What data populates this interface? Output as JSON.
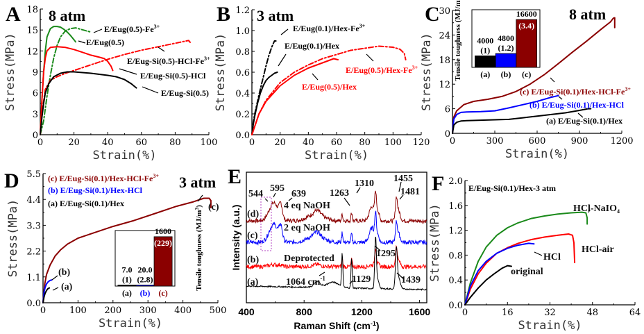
{
  "colors": {
    "black": "#000000",
    "red": "#ff0000",
    "green": "#1a8a1a",
    "blue": "#0000ff",
    "darkred": "#8b0000",
    "purple": "#b040c0"
  },
  "chart_data": [
    {
      "panel": "A",
      "type": "line",
      "title": "8 atm",
      "xlabel": "Strain(%)",
      "ylabel": "Stress(MPa)",
      "xlim": [
        0,
        100
      ],
      "ylim": [
        0,
        18
      ],
      "xticks": [
        "0",
        "20",
        "40",
        "60",
        "80",
        "100"
      ],
      "yticks": [
        "0",
        "3",
        "6",
        "9",
        "12",
        "15",
        "18"
      ],
      "series": [
        {
          "name": "E/Eug(0.5)-Fe3+",
          "label": "E/Eug(0.5)-Fe",
          "sup": "3+",
          "color": "green",
          "dash": "dashdot",
          "x": [
            0,
            2,
            4,
            6,
            8,
            10,
            12,
            15,
            18,
            21,
            24,
            27,
            30
          ],
          "y": [
            0,
            2,
            5.5,
            8.5,
            11,
            12.8,
            14,
            14.9,
            15.2,
            15.3,
            15.1,
            14.9,
            14.7
          ]
        },
        {
          "name": "E/Eug(0.5)",
          "label": "E/Eug(0.5)",
          "color": "green",
          "dash": "solid",
          "x": [
            0,
            1,
            2,
            3,
            4,
            6,
            8,
            10,
            12,
            14,
            16,
            18,
            20,
            21
          ],
          "y": [
            0,
            5,
            9,
            12,
            14,
            15.2,
            15.5,
            15.5,
            15.4,
            15.1,
            14.7,
            14.2,
            13.6,
            13.3
          ]
        },
        {
          "name": "E/Eug-Si(0.5)-HCl-Fe3+",
          "label": "E/Eug-Si(0.5)-HCl-Fe",
          "sup": "3+",
          "color": "red",
          "dash": "dashdot",
          "x": [
            0,
            1,
            3,
            6,
            10,
            15,
            20,
            30,
            40,
            50,
            60,
            70,
            80,
            88,
            89
          ],
          "y": [
            0,
            3,
            6.5,
            7.8,
            8.3,
            8.8,
            9.2,
            10,
            10.8,
            11.5,
            12.1,
            12.6,
            13.1,
            13.5,
            13.2
          ]
        },
        {
          "name": "E/Eug-Si(0.5)-HCl",
          "label": "E/Eug-Si(0.5)-HCl",
          "color": "red",
          "dash": "solid",
          "x": [
            0,
            1,
            2,
            3,
            4,
            6,
            10,
            15,
            20,
            25,
            30,
            35,
            38,
            40,
            42,
            43
          ],
          "y": [
            0,
            5,
            9,
            11,
            12,
            12.5,
            12.6,
            12.5,
            12.2,
            11.8,
            11.4,
            11.1,
            10.9,
            10.5,
            9.8,
            9.2
          ]
        },
        {
          "name": "E/Eug-Si(0.5)",
          "label": "E/Eug-Si(0.5)",
          "color": "black",
          "dash": "solid",
          "x": [
            0,
            1,
            2,
            3,
            5,
            8,
            12,
            16,
            20,
            30,
            40,
            45,
            50,
            54,
            57
          ],
          "y": [
            0,
            2.5,
            4.5,
            6,
            7.3,
            8.3,
            8.8,
            9,
            9,
            8.8,
            8.5,
            8.3,
            7.9,
            7.3,
            6.7
          ]
        }
      ]
    },
    {
      "panel": "B",
      "type": "line",
      "title": "3 atm",
      "xlabel": "Strain(%)",
      "ylabel": "Stress(MPa)",
      "xlim": [
        0,
        120
      ],
      "ylim": [
        0,
        1.2
      ],
      "xticks": [
        "0",
        "20",
        "40",
        "60",
        "80",
        "100",
        "120"
      ],
      "yticks": [
        "0.0",
        "0.2",
        "0.4",
        "0.6",
        "0.8",
        "1.0",
        "1.2"
      ],
      "series": [
        {
          "name": "E/Eug(0.1)/Hex-Fe3+",
          "label": "E/Eug(0.1)/Hex-Fe",
          "sup": "3+",
          "color": "black",
          "dash": "dashdot",
          "x": [
            0,
            1,
            2,
            4,
            6,
            8,
            10,
            12,
            14,
            16,
            17
          ],
          "y": [
            0,
            0.12,
            0.2,
            0.32,
            0.44,
            0.55,
            0.66,
            0.76,
            0.84,
            0.9,
            0.9
          ]
        },
        {
          "name": "E/Eug(0.1)/Hex",
          "label": "E/Eug(0.1)/Hex",
          "color": "black",
          "dash": "solid",
          "x": [
            0,
            1,
            2,
            4,
            6,
            8,
            10,
            12,
            14,
            16,
            18
          ],
          "y": [
            0,
            0.1,
            0.18,
            0.3,
            0.4,
            0.47,
            0.52,
            0.55,
            0.57,
            0.59,
            0.6
          ]
        },
        {
          "name": "E/Eug(0.5)/Hex-Fe3+",
          "label": "E/Eug(0.5)/Hex-Fe",
          "sup": "3+",
          "color": "red",
          "dash": "dashdot",
          "x": [
            0,
            5,
            10,
            20,
            30,
            40,
            50,
            60,
            70,
            80,
            90,
            100,
            105,
            108,
            109
          ],
          "y": [
            0,
            0.2,
            0.33,
            0.5,
            0.6,
            0.67,
            0.73,
            0.77,
            0.81,
            0.83,
            0.85,
            0.84,
            0.82,
            0.78,
            0.72
          ]
        },
        {
          "name": "E/Eug(0.5)/Hex",
          "label": "E/Eug(0.5)/Hex",
          "color": "red",
          "dash": "solid",
          "x": [
            0,
            5,
            10,
            20,
            30,
            40,
            50,
            58,
            61
          ],
          "y": [
            0,
            0.2,
            0.32,
            0.47,
            0.57,
            0.64,
            0.69,
            0.73,
            0.72
          ]
        }
      ]
    },
    {
      "panel": "C",
      "type": "line",
      "title": "8 atm",
      "xlabel": "Strain(%)",
      "ylabel": "Stress(MPa)",
      "xlim": [
        0,
        1200
      ],
      "ylim": [
        0,
        30
      ],
      "xticks": [
        "0",
        "300",
        "600",
        "900",
        "1200"
      ],
      "yticks": [
        "0",
        "6",
        "12",
        "18",
        "24",
        "30"
      ],
      "series": [
        {
          "name": "(c) E/Eug-Si(0.1)/Hex-HCl-Fe3+",
          "label": "(c) E/Eug-Si(0.1)/Hex-HCl-Fe",
          "sup": "3+",
          "color": "darkred",
          "dash": "solid",
          "x": [
            0,
            10,
            30,
            80,
            150,
            250,
            350,
            450,
            550,
            650,
            750,
            850,
            950,
            1050,
            1120,
            1140,
            1150,
            1150
          ],
          "y": [
            0,
            4,
            5.5,
            7,
            7.8,
            8.3,
            9,
            10.2,
            12,
            14.3,
            17,
            19.8,
            22.5,
            25.3,
            27.2,
            28.1,
            28.2,
            25.8
          ]
        },
        {
          "name": "(b) E/Eug-Si(0.1)/Hex-HCl",
          "label": "(b) E/Eug-Si(0.1)/Hex-HCl",
          "color": "blue",
          "dash": "solid",
          "x": [
            0,
            10,
            30,
            60,
            100,
            200,
            300,
            400,
            500,
            600,
            700,
            750
          ],
          "y": [
            0,
            3.5,
            4.6,
            5.1,
            5.2,
            5.3,
            5.5,
            6.2,
            7,
            7.8,
            8.8,
            9.2
          ]
        },
        {
          "name": "(a) E/Eug-Si(0.1)/Hex",
          "label": "(a) E/Eug-Si(0.1)/Hex",
          "color": "black",
          "dash": "solid",
          "x": [
            0,
            10,
            30,
            60,
            100,
            200,
            300,
            400,
            500,
            600,
            700,
            800,
            900,
            960,
            980
          ],
          "y": [
            0,
            2,
            2.7,
            3,
            3.1,
            3.2,
            3.3,
            3.4,
            3.8,
            4.2,
            4.6,
            5,
            5.6,
            6,
            6
          ]
        }
      ],
      "inset": {
        "type": "bar",
        "ylabel": "Tensile toughness (MJ/m3)",
        "categories": [
          "(a)",
          "(b)",
          "(c)"
        ],
        "values": [
          4000,
          4800,
          16600
        ],
        "value_labels": [
          "4000",
          "4800",
          "16600"
        ],
        "ratio_labels": [
          "(1)",
          "(1.2)",
          "(3.4)"
        ],
        "colors": [
          "black",
          "blue",
          "darkred"
        ],
        "ylim": [
          0,
          20000
        ]
      }
    },
    {
      "panel": "D",
      "type": "line",
      "title": "3 atm",
      "xlabel": "Strain(%)",
      "ylabel": "Stress(MPa)",
      "xlim": [
        0,
        500
      ],
      "ylim": [
        0,
        5.5
      ],
      "xticks": [
        "0",
        "100",
        "200",
        "300",
        "400",
        "500"
      ],
      "yticks": [
        "0.0",
        "1.1",
        "2.2",
        "3.3",
        "4.4",
        "5.5"
      ],
      "legend": [
        "(c) E/Eug-Si(0.1)/Hex-HCl-Fe3+",
        "(b) E/Eug-Si(0.1)/Hex-HCl",
        "(a) E/Eug-Si(0.1)/Hex"
      ],
      "series": [
        {
          "name": "(c) E/Eug-Si(0.1)/Hex-HCl-Fe3+",
          "label": "(c) E/Eug-Si(0.1)/Hex-HCl-Fe",
          "sup": "3+",
          "color": "darkred",
          "dash": "solid",
          "x": [
            0,
            5,
            10,
            20,
            35,
            50,
            70,
            100,
            140,
            200,
            260,
            320,
            380,
            430,
            460,
            475,
            480,
            480
          ],
          "y": [
            0,
            0.8,
            1.2,
            1.6,
            2.0,
            2.25,
            2.5,
            2.75,
            2.95,
            3.25,
            3.5,
            3.8,
            4.1,
            4.3,
            4.45,
            4.45,
            4.35,
            4.05
          ]
        },
        {
          "name": "(b) E/Eug-Si(0.1)/Hex-HCl",
          "label": "(b)",
          "color": "blue",
          "dash": "solid",
          "x": [
            0,
            3,
            6,
            10,
            15,
            20,
            25
          ],
          "y": [
            0,
            0.45,
            0.65,
            0.8,
            0.9,
            0.95,
            0.97
          ]
        },
        {
          "name": "(a) E/Eug-Si(0.1)/Hex",
          "label": "(a)",
          "color": "black",
          "dash": "solid",
          "x": [
            0,
            3,
            6,
            10,
            14,
            18
          ],
          "y": [
            0,
            0.25,
            0.4,
            0.52,
            0.6,
            0.63
          ]
        }
      ],
      "inset": {
        "type": "bar",
        "ylabel": "Tensile toughness (MJ/m3)",
        "categories": [
          "(a)",
          "(b)",
          "(c)"
        ],
        "values": [
          7.0,
          20.0,
          1600
        ],
        "value_labels": [
          "7.0",
          "20.0",
          "1600"
        ],
        "ratio_labels": [
          "(1)",
          "(2.8)",
          "(229)"
        ],
        "colors": [
          "black",
          "blue",
          "darkred"
        ],
        "ylim": [
          0,
          1800
        ]
      }
    },
    {
      "panel": "E",
      "type": "line",
      "xlabel": "Raman Shift (cm-1)",
      "ylabel": "Intensity (a.u.)",
      "xlim": [
        400,
        1650
      ],
      "xticks": [
        "400",
        "800",
        "1200",
        "1600"
      ],
      "series": [
        {
          "name": "(d) 4 eq NaOH",
          "tag": "(d)",
          "label": "4 eq NaOH",
          "color": "darkred"
        },
        {
          "name": "(c) 2 eq NaOH",
          "tag": "(c)",
          "label": "2 eq NaOH",
          "color": "blue"
        },
        {
          "name": "(b) Deprotected",
          "tag": "(b)",
          "label": "Deprotected",
          "color": "red"
        },
        {
          "name": "(a)",
          "tag": "(a)",
          "label": "",
          "color": "black"
        }
      ],
      "annotations": [
        "544",
        "595",
        "639",
        "1263",
        "1310",
        "1455",
        "1481",
        "1295",
        "1064 cm-1",
        "1129",
        "1439"
      ]
    },
    {
      "panel": "F",
      "type": "line",
      "title": "E/Eug-Si(0.1)/Hex-3 atm",
      "xlabel": "Strain(%)",
      "ylabel": "Stress(MPa)",
      "xlim": [
        0,
        64
      ],
      "ylim": [
        0,
        2.0
      ],
      "xticks": [
        "0",
        "16",
        "32",
        "48",
        "64"
      ],
      "yticks": [
        "0.0",
        "0.4",
        "0.8",
        "1.2",
        "1.6",
        "2.0"
      ],
      "series": [
        {
          "name": "HCl-NaIO4",
          "label": "HCl-NaIO",
          "sub": "4",
          "color": "green",
          "x": [
            0,
            2,
            5,
            8,
            12,
            16,
            20,
            25,
            30,
            35,
            40,
            44,
            45.5,
            46,
            46
          ],
          "y": [
            0,
            0.35,
            0.7,
            0.93,
            1.12,
            1.24,
            1.32,
            1.39,
            1.43,
            1.46,
            1.48,
            1.49,
            1.48,
            1.4,
            1.3
          ]
        },
        {
          "name": "HCl-air",
          "label": "HCl-air",
          "color": "red",
          "x": [
            0,
            2,
            5,
            8,
            12,
            16,
            20,
            25,
            30,
            35,
            39,
            40.5,
            41,
            41.3
          ],
          "y": [
            0,
            0.25,
            0.5,
            0.67,
            0.83,
            0.92,
            0.99,
            1.05,
            1.09,
            1.12,
            1.14,
            1.12,
            1.0,
            0.68
          ]
        },
        {
          "name": "HCl",
          "label": "HCl",
          "color": "blue",
          "x": [
            0,
            2,
            5,
            8,
            12,
            16,
            20,
            24,
            26
          ],
          "y": [
            0,
            0.3,
            0.55,
            0.7,
            0.83,
            0.91,
            0.96,
            0.99,
            0.98
          ]
        },
        {
          "name": "original",
          "label": "original",
          "color": "black",
          "x": [
            0,
            2,
            5,
            8,
            11,
            14,
            16,
            17.5
          ],
          "y": [
            0,
            0.12,
            0.27,
            0.4,
            0.5,
            0.59,
            0.63,
            0.62
          ]
        }
      ]
    }
  ]
}
